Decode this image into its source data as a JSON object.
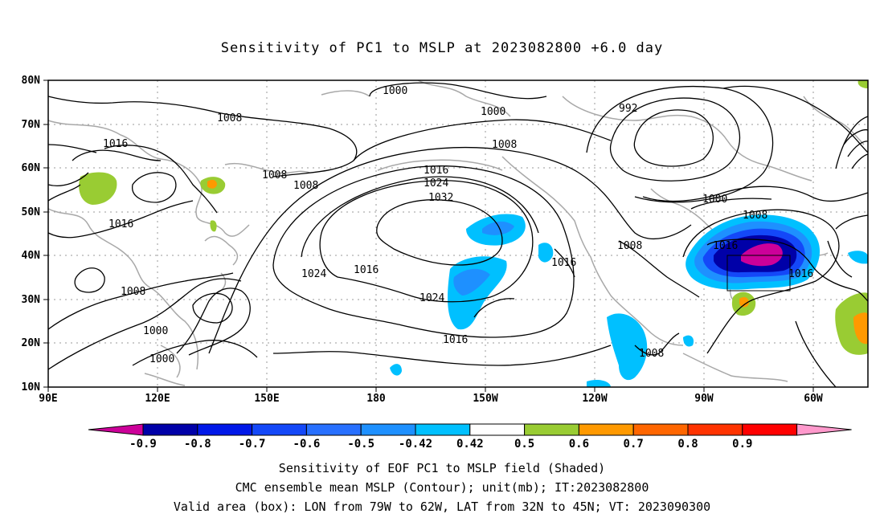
{
  "title": "Sensitivity of PC1 to MSLP at 2023082800 +6.0 day",
  "lat_labels": [
    "80N",
    "70N",
    "60N",
    "50N",
    "40N",
    "30N",
    "20N",
    "10N"
  ],
  "lon_labels": [
    "90E",
    "120E",
    "150E",
    "180",
    "150W",
    "120W",
    "90W",
    "60W"
  ],
  "contour_labels": {
    "c1000_a": "1000",
    "c1000_b": "1000",
    "c1000_c": "1000",
    "c1000_d": "1000",
    "c1000_e": "1000",
    "c992": "992",
    "c1008_a": "1008",
    "c1008_b": "1008",
    "c1008_c": "1008",
    "c1008_d": "1008",
    "c1008_e": "1008",
    "c1008_f": "1008",
    "c1008_g": "1008",
    "c1008_h": "1008",
    "c1016_a": "1016",
    "c1016_b": "1016",
    "c1016_c": "1016",
    "c1016_d": "1016",
    "c1016_e": "1016",
    "c1016_f": "1016",
    "c1016_g": "1016",
    "c1016_h": "1016",
    "c1024_a": "1024",
    "c1024_b": "1024",
    "c1024_c": "1024",
    "c1032": "1032"
  },
  "colorbar": {
    "labels": [
      "-0.9",
      "-0.8",
      "-0.7",
      "-0.6",
      "-0.5",
      "-0.42",
      "0.42",
      "0.5",
      "0.6",
      "0.7",
      "0.8",
      "0.9"
    ],
    "colors": [
      "#0000a8",
      "#0018e8",
      "#1448f8",
      "#2870ff",
      "#1e90ff",
      "#00c0ff",
      "#ffffff",
      "#99cc33",
      "#ff9900",
      "#ff6600",
      "#ff3300",
      "#ff0000"
    ],
    "low_end_color": "#cc0099",
    "high_end_color": "#ff99cc"
  },
  "captions": {
    "line1": "Sensitivity of EOF PC1 to MSLP field (Shaded)",
    "line2": "CMC ensemble mean MSLP (Contour); unit(mb); IT:2023082800",
    "line3": "Valid area (box): LON from 79W to 62W, LAT from 32N to 45N; VT: 2023090300"
  }
}
